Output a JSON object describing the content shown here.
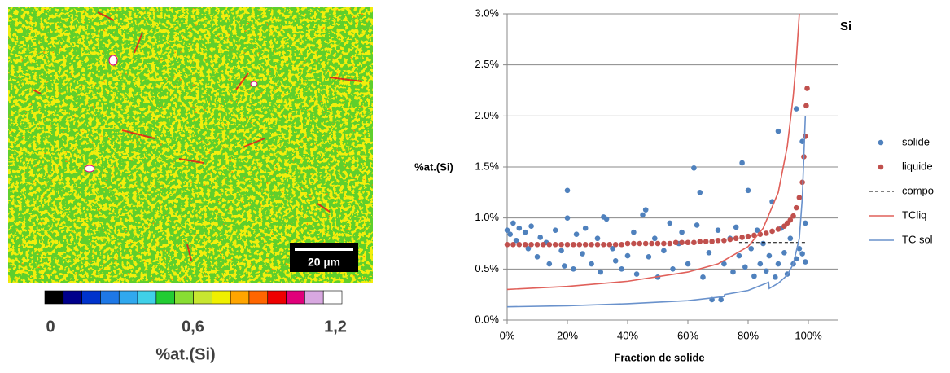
{
  "image": {
    "scale_bar": "20 µm",
    "colorbar": {
      "title": "%at.(Si)",
      "lim": [
        0,
        1.2
      ],
      "ticks": [
        {
          "value": 0,
          "label": "0"
        },
        {
          "value": 0.6,
          "label": "0,6"
        },
        {
          "value": 1.2,
          "label": "1,2"
        }
      ],
      "colors": [
        "#000000",
        "#00008b",
        "#0033cc",
        "#1e78e6",
        "#30a8ee",
        "#40d0e8",
        "#22cc33",
        "#88dd33",
        "#c8e630",
        "#f0f000",
        "#ffa500",
        "#ff6600",
        "#ee0000",
        "#e0007a",
        "#d8a8e0",
        "#ffffff"
      ]
    }
  },
  "chart_data": {
    "type": "scatter",
    "title": "Si",
    "x_label": "Fraction de solide",
    "y_label": "%at.(Si)",
    "xlim": [
      0,
      110
    ],
    "ylim": [
      0,
      3
    ],
    "xticks": [
      {
        "value": 0,
        "label": "0%"
      },
      {
        "value": 20,
        "label": "20%"
      },
      {
        "value": 40,
        "label": "40%"
      },
      {
        "value": 60,
        "label": "60%"
      },
      {
        "value": 80,
        "label": "80%"
      },
      {
        "value": 100,
        "label": "100%"
      }
    ],
    "yticks": [
      {
        "value": 0,
        "label": "0.0%"
      },
      {
        "value": 0.5,
        "label": "0.5%"
      },
      {
        "value": 1,
        "label": "1.0%"
      },
      {
        "value": 1.5,
        "label": "1.5%"
      },
      {
        "value": 2,
        "label": "2.0%"
      },
      {
        "value": 2.5,
        "label": "2.5%"
      },
      {
        "value": 3,
        "label": "3.0%"
      }
    ],
    "grid": true,
    "legend": "right",
    "series": [
      {
        "name": "solide",
        "kind": "scatter",
        "color": "#4f81bd",
        "x": [
          0,
          1,
          2,
          3,
          4,
          6,
          7,
          8,
          10,
          11,
          13,
          14,
          16,
          18,
          19,
          20,
          20,
          22,
          23,
          25,
          26,
          28,
          30,
          31,
          32,
          33,
          35,
          36,
          38,
          40,
          42,
          43,
          45,
          46,
          47,
          49,
          50,
          52,
          54,
          55,
          57,
          58,
          60,
          62,
          63,
          64,
          65,
          67,
          68,
          70,
          71,
          72,
          74,
          75,
          76,
          77,
          78,
          79,
          80,
          81,
          82,
          83,
          84,
          85,
          86,
          87,
          88,
          89,
          90,
          90,
          91,
          92,
          93,
          94,
          95,
          96,
          96,
          97,
          98,
          98,
          99,
          99
        ],
        "values": [
          0.88,
          0.84,
          0.95,
          0.78,
          0.9,
          0.86,
          0.7,
          0.92,
          0.62,
          0.81,
          0.76,
          0.55,
          0.88,
          0.68,
          0.53,
          1.27,
          1.0,
          0.5,
          0.84,
          0.65,
          0.9,
          0.55,
          0.8,
          0.47,
          1.01,
          0.99,
          0.7,
          0.58,
          0.5,
          0.63,
          0.86,
          0.45,
          1.03,
          1.08,
          0.62,
          0.8,
          0.42,
          0.68,
          0.95,
          0.5,
          0.75,
          0.86,
          0.55,
          1.49,
          0.93,
          1.25,
          0.42,
          0.66,
          0.2,
          0.88,
          0.2,
          0.55,
          0.8,
          0.47,
          0.91,
          0.63,
          1.54,
          0.52,
          1.27,
          0.7,
          0.43,
          0.88,
          0.55,
          0.75,
          0.48,
          0.63,
          1.16,
          0.42,
          1.85,
          0.55,
          0.9,
          0.66,
          0.45,
          0.8,
          0.55,
          2.07,
          0.6,
          0.7,
          1.75,
          0.65,
          0.95,
          0.57
        ]
      },
      {
        "name": "liquide",
        "kind": "scatter",
        "color": "#c0504d",
        "x": [
          0,
          2,
          4,
          6,
          8,
          10,
          12,
          14,
          16,
          18,
          20,
          22,
          24,
          26,
          28,
          30,
          32,
          34,
          36,
          38,
          40,
          42,
          44,
          46,
          48,
          50,
          52,
          54,
          56,
          58,
          60,
          62,
          64,
          66,
          68,
          70,
          72,
          74,
          76,
          78,
          80,
          82,
          84,
          86,
          88,
          90,
          92,
          93,
          94,
          95,
          96,
          97,
          98,
          98.5,
          99,
          99.3,
          99.6
        ],
        "values": [
          0.74,
          0.74,
          0.74,
          0.74,
          0.74,
          0.74,
          0.74,
          0.74,
          0.74,
          0.74,
          0.74,
          0.74,
          0.74,
          0.74,
          0.74,
          0.74,
          0.74,
          0.74,
          0.74,
          0.74,
          0.75,
          0.75,
          0.75,
          0.75,
          0.75,
          0.75,
          0.75,
          0.75,
          0.76,
          0.76,
          0.76,
          0.76,
          0.77,
          0.77,
          0.77,
          0.78,
          0.78,
          0.79,
          0.8,
          0.81,
          0.82,
          0.83,
          0.84,
          0.85,
          0.87,
          0.89,
          0.92,
          0.95,
          0.98,
          1.02,
          1.1,
          1.2,
          1.35,
          1.6,
          1.8,
          2.1,
          2.27
        ]
      },
      {
        "name": "compo",
        "kind": "line",
        "dash": true,
        "color": "#000000",
        "x": [
          77,
          99
        ],
        "values": [
          0.76,
          0.76
        ]
      },
      {
        "name": "TCliq",
        "kind": "line",
        "color": "#e0605a",
        "x": [
          0,
          20,
          40,
          60,
          70,
          80,
          85,
          90,
          93,
          95,
          96,
          97
        ],
        "values": [
          0.3,
          0.33,
          0.38,
          0.47,
          0.55,
          0.72,
          0.9,
          1.25,
          1.7,
          2.2,
          2.55,
          3.0
        ]
      },
      {
        "name": "TC sol",
        "kind": "line",
        "color": "#6a92cc",
        "x": [
          0,
          20,
          40,
          60,
          72,
          72.2,
          80,
          86.8,
          87,
          90,
          93,
          95,
          97,
          98,
          99
        ],
        "values": [
          0.13,
          0.14,
          0.16,
          0.19,
          0.23,
          0.25,
          0.29,
          0.37,
          0.31,
          0.36,
          0.44,
          0.55,
          0.8,
          1.2,
          2.0
        ]
      }
    ]
  }
}
